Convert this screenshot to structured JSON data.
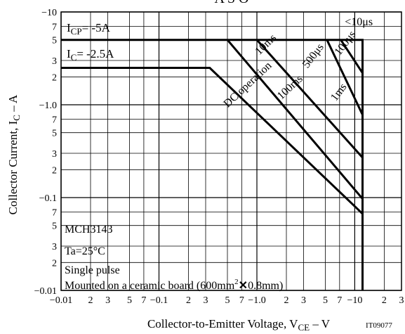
{
  "chart_data": {
    "type": "line",
    "title": "A S O",
    "xlabel": {
      "main": "Collector-to-Emitter Voltage, V",
      "sub": "CE",
      "unit": " – V"
    },
    "ylabel": {
      "main": "Collector Current, I",
      "sub": "C",
      "unit": " – A"
    },
    "figure_code": "IT09077",
    "x_scale": "log",
    "y_scale": "log",
    "xlim": [
      0.01,
      30
    ],
    "ylim": [
      0.01,
      10
    ],
    "x_tick_labels": [
      {
        "v": 0.01,
        "t": "−0.01",
        "major": true
      },
      {
        "v": 0.02,
        "t": "2"
      },
      {
        "v": 0.03,
        "t": "3"
      },
      {
        "v": 0.05,
        "t": "5"
      },
      {
        "v": 0.07,
        "t": "7"
      },
      {
        "v": 0.1,
        "t": "−0.1",
        "major": true
      },
      {
        "v": 0.2,
        "t": "2"
      },
      {
        "v": 0.3,
        "t": "3"
      },
      {
        "v": 0.5,
        "t": "5"
      },
      {
        "v": 0.7,
        "t": "7"
      },
      {
        "v": 1,
        "t": "−1.0",
        "major": true
      },
      {
        "v": 2,
        "t": "2"
      },
      {
        "v": 3,
        "t": "3"
      },
      {
        "v": 5,
        "t": "5"
      },
      {
        "v": 7,
        "t": "7"
      },
      {
        "v": 10,
        "t": "−10",
        "major": true
      },
      {
        "v": 20,
        "t": "2"
      },
      {
        "v": 30,
        "t": "3"
      }
    ],
    "y_tick_labels": [
      {
        "v": 10,
        "t": "−10",
        "major": true
      },
      {
        "v": 7,
        "t": "7"
      },
      {
        "v": 5,
        "t": "5"
      },
      {
        "v": 3,
        "t": "3"
      },
      {
        "v": 2,
        "t": "2"
      },
      {
        "v": 1,
        "t": "−1.0",
        "major": true
      },
      {
        "v": 0.7,
        "t": "7"
      },
      {
        "v": 0.5,
        "t": "5"
      },
      {
        "v": 0.3,
        "t": "3"
      },
      {
        "v": 0.2,
        "t": "2"
      },
      {
        "v": 0.1,
        "t": "−0.1",
        "major": true
      },
      {
        "v": 0.07,
        "t": "7"
      },
      {
        "v": 0.05,
        "t": "5"
      },
      {
        "v": 0.03,
        "t": "3"
      },
      {
        "v": 0.02,
        "t": "2"
      },
      {
        "v": 0.01,
        "t": "−0.01",
        "major": true
      }
    ],
    "grid": true,
    "series": [
      {
        "name": "<10μs",
        "points": [
          [
            0.01,
            5
          ],
          [
            12,
            5
          ],
          [
            12,
            0.01
          ]
        ]
      },
      {
        "name": "100μs",
        "points": [
          [
            7.2,
            5
          ],
          [
            12,
            2.2
          ]
        ]
      },
      {
        "name": "1ms",
        "points": [
          [
            5.2,
            5
          ],
          [
            12,
            0.78
          ]
        ]
      },
      {
        "name": "10ms",
        "points": [
          [
            1.0,
            5
          ],
          [
            12,
            0.27
          ]
        ]
      },
      {
        "name": "100ms",
        "points": [
          [
            0.5,
            5
          ],
          [
            12,
            0.097
          ]
        ]
      },
      {
        "name": "DC operation",
        "points": [
          [
            0.01,
            2.5
          ],
          [
            0.33,
            2.5
          ],
          [
            12,
            0.067
          ]
        ]
      }
    ],
    "curve_labels": [
      {
        "text": "<10μs",
        "at": [
          11.0,
          7.2
        ],
        "angle": 0
      },
      {
        "text": "100μs",
        "at": [
          8.5,
          4.4
        ],
        "angle": -53
      },
      {
        "text": "500μs",
        "at": [
          4.0,
          3.2
        ],
        "angle": -53
      },
      {
        "text": "1ms",
        "at": [
          7.3,
          1.3
        ],
        "angle": -53
      },
      {
        "text": "10ms",
        "at": [
          1.3,
          4.2
        ],
        "angle": -44
      },
      {
        "text": "100ms",
        "at": [
          2.3,
          1.45
        ],
        "angle": -43
      },
      {
        "text": "DC operation",
        "at": [
          0.85,
          1.55
        ],
        "angle": -43
      }
    ],
    "annotations": [
      {
        "text": "ICP= −5A",
        "at": [
          0.011,
          7.0
        ]
      },
      {
        "text": "IC= −2.5A",
        "at": [
          0.011,
          3.3
        ]
      }
    ],
    "note_lines": [
      "MCH3143",
      "Ta=25°C",
      "Single pulse",
      "Mounted on a ceramic board (600mm2×0.8mm)"
    ]
  },
  "note_parts": {
    "icp": {
      "main": "I",
      "sub": "CP",
      "rest": "= -5A"
    },
    "ic": {
      "main": "I",
      "sub": "C",
      "rest": "= -2.5A"
    },
    "board": {
      "before": "Mounted on a ceramic board (600mm",
      "sup": "2",
      "times": "✕",
      "after": "0.8mm)"
    }
  }
}
